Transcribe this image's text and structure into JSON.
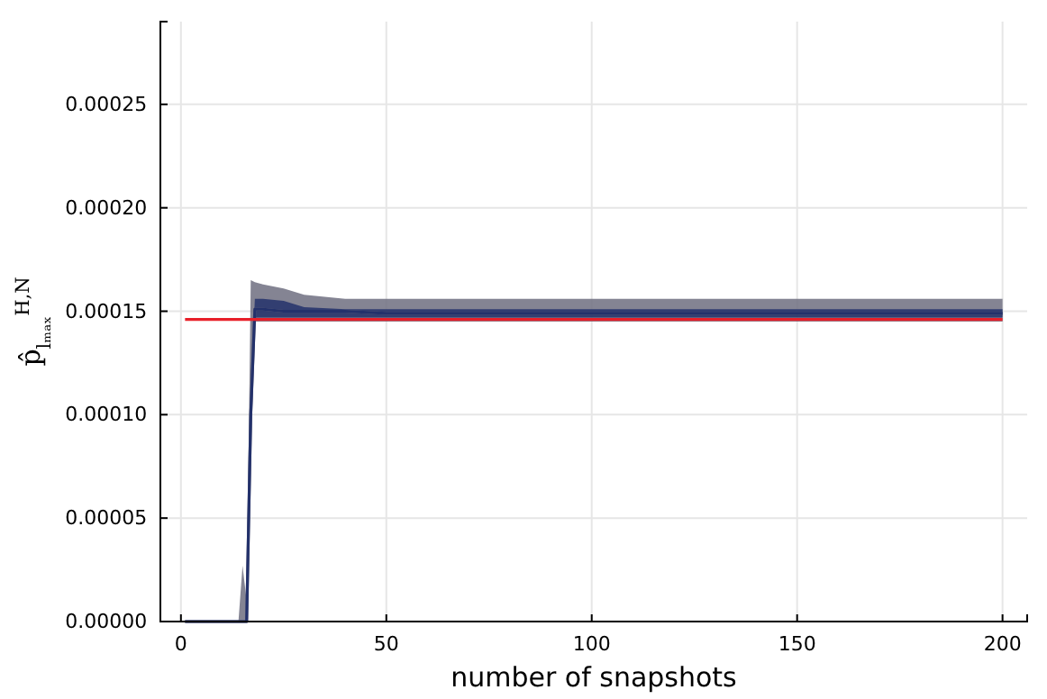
{
  "chart_data": {
    "type": "line",
    "xlabel": "number of snapshots",
    "ylabel": "p̂$_{lₘₐₓ}$$^{H,N}$",
    "xlim": [
      -5,
      206
    ],
    "xticks": [
      0,
      50,
      100,
      150,
      200
    ],
    "ylim": [
      0,
      0.00029
    ],
    "yticks": [
      {
        "value": 0,
        "label": "0.00000"
      },
      {
        "value": 5e-05,
        "label": "0.00005"
      },
      {
        "value": 0.0001,
        "label": "0.00010"
      },
      {
        "value": 0.00015,
        "label": "0.00015"
      },
      {
        "value": 0.0002,
        "label": "0.00020"
      },
      {
        "value": 0.00025,
        "label": "0.00025"
      }
    ],
    "grid": true,
    "series": [
      {
        "color": "#6e6e80",
        "x": [
          1,
          14,
          15,
          16,
          17,
          18,
          20,
          25,
          30,
          40,
          50,
          75,
          100,
          150,
          200
        ],
        "values": [
          0,
          0,
          0,
          0,
          0.0001,
          0.000151,
          0.000151,
          0.00015,
          0.00015,
          0.00015,
          0.000149,
          0.000149,
          0.000149,
          0.000149,
          0.000149
        ],
        "lower": [
          0,
          0,
          0,
          0,
          8e-05,
          0.000145,
          0.000145,
          0.000145,
          0.000145,
          0.000145,
          0.000145,
          0.000145,
          0.000145,
          0.000145,
          0.000145
        ],
        "upper": [
          0,
          0,
          2.7e-05,
          1e-05,
          0.000165,
          0.000164,
          0.000163,
          0.000161,
          0.000158,
          0.000156,
          0.000156,
          0.000156,
          0.000156,
          0.000156,
          0.000156
        ]
      },
      {
        "color": "#23316b",
        "x": [
          1,
          14,
          15,
          16,
          17,
          18,
          20,
          25,
          30,
          40,
          50,
          75,
          100,
          150,
          200
        ],
        "values": [
          0,
          0,
          0,
          0,
          0.0001,
          0.000151,
          0.000151,
          0.00015,
          0.00015,
          0.00015,
          0.000149,
          0.000149,
          0.000149,
          0.000149,
          0.000149
        ],
        "lower": [
          0,
          0,
          0,
          0,
          9e-05,
          0.000147,
          0.000147,
          0.000147,
          0.000147,
          0.000147,
          0.000147,
          0.000147,
          0.000147,
          0.000147,
          0.000147
        ],
        "upper": [
          0,
          0,
          0,
          0,
          0.00011,
          0.000156,
          0.000156,
          0.000155,
          0.000152,
          0.000151,
          0.000151,
          0.000151,
          0.000151,
          0.000151,
          0.000151
        ]
      },
      {
        "color": "#e8202a",
        "x": [
          1,
          200
        ],
        "values": [
          0.000146,
          0.000146
        ]
      }
    ]
  }
}
